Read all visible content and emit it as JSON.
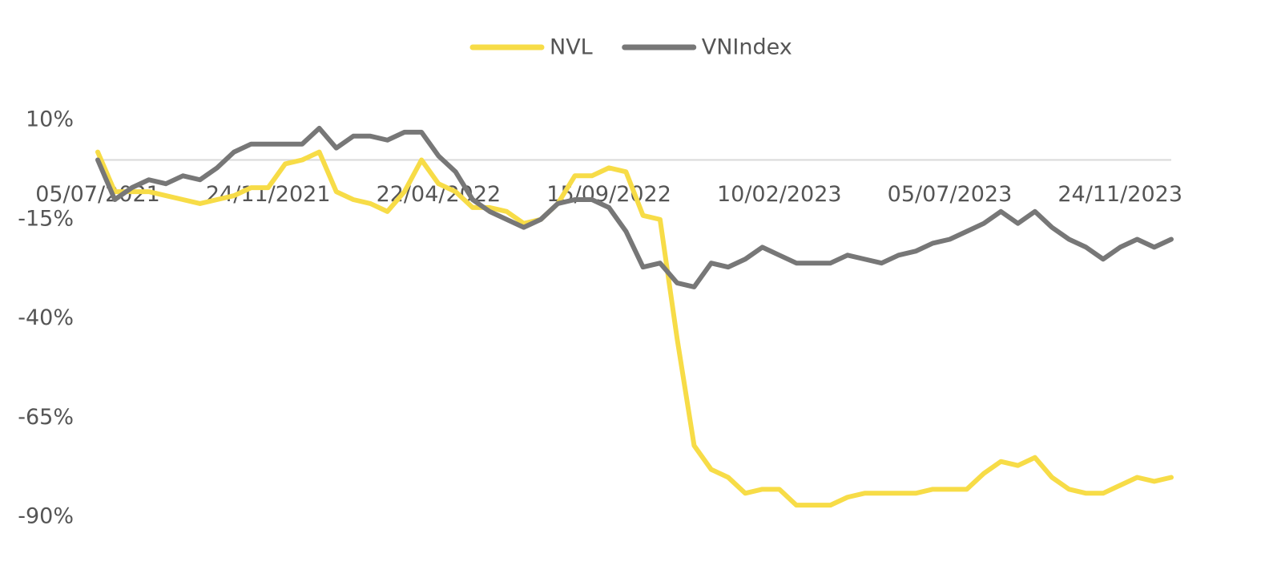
{
  "chart_data": {
    "type": "line",
    "categories": [
      "05/07/2021",
      null,
      null,
      null,
      null,
      null,
      null,
      null,
      null,
      null,
      "24/11/2021",
      null,
      null,
      null,
      null,
      null,
      null,
      null,
      null,
      null,
      "22/04/2022",
      null,
      null,
      null,
      null,
      null,
      null,
      null,
      null,
      null,
      "15/09/2022",
      null,
      null,
      null,
      null,
      null,
      null,
      null,
      null,
      null,
      "10/02/2023",
      null,
      null,
      null,
      null,
      null,
      null,
      null,
      null,
      null,
      "05/07/2023",
      null,
      null,
      null,
      null,
      null,
      null,
      null,
      null,
      null,
      "24/11/2023",
      null,
      null,
      null
    ],
    "series": [
      {
        "name": "NVL",
        "color": "#f7dc47",
        "values": [
          2,
          -8,
          -8,
          -8,
          -9,
          -10,
          -11,
          -10,
          -9,
          -7,
          -7,
          -1,
          0,
          2,
          -8,
          -10,
          -11,
          -13,
          -8,
          0,
          -6,
          -8,
          -12,
          -12,
          -13,
          -16,
          -15,
          -11,
          -4,
          -4,
          -2,
          -3,
          -14,
          -15,
          -45,
          -72,
          -78,
          -80,
          -84,
          -83,
          -83,
          -87,
          -87,
          -87,
          -85,
          -84,
          -84,
          -84,
          -84,
          -83,
          -83,
          -83,
          -79,
          -76,
          -77,
          -75,
          -80,
          -83,
          -84,
          -84,
          -82,
          -80,
          -81,
          -80
        ]
      },
      {
        "name": "VNIndex",
        "color": "#777777",
        "values": [
          0,
          -10,
          -7,
          -5,
          -6,
          -4,
          -5,
          -2,
          2,
          4,
          4,
          4,
          4,
          8,
          3,
          6,
          6,
          5,
          7,
          7,
          1,
          -3,
          -10,
          -13,
          -15,
          -17,
          -15,
          -11,
          -10,
          -10,
          -12,
          -18,
          -27,
          -26,
          -31,
          -32,
          -26,
          -27,
          -25,
          -22,
          -24,
          -26,
          -26,
          -26,
          -24,
          -25,
          -26,
          -24,
          -23,
          -21,
          -20,
          -18,
          -16,
          -13,
          -16,
          -13,
          -17,
          -20,
          -22,
          -25,
          -22,
          -20,
          -22,
          -20
        ]
      }
    ],
    "ylim": [
      -90,
      10
    ],
    "yticks": [
      {
        "value": 10,
        "label": "10%"
      },
      {
        "value": -15,
        "label": "-15%"
      },
      {
        "value": -40,
        "label": "-40%"
      },
      {
        "value": -65,
        "label": "-65%"
      },
      {
        "value": -90,
        "label": "-90%"
      }
    ],
    "grid": false,
    "legend": "top"
  }
}
